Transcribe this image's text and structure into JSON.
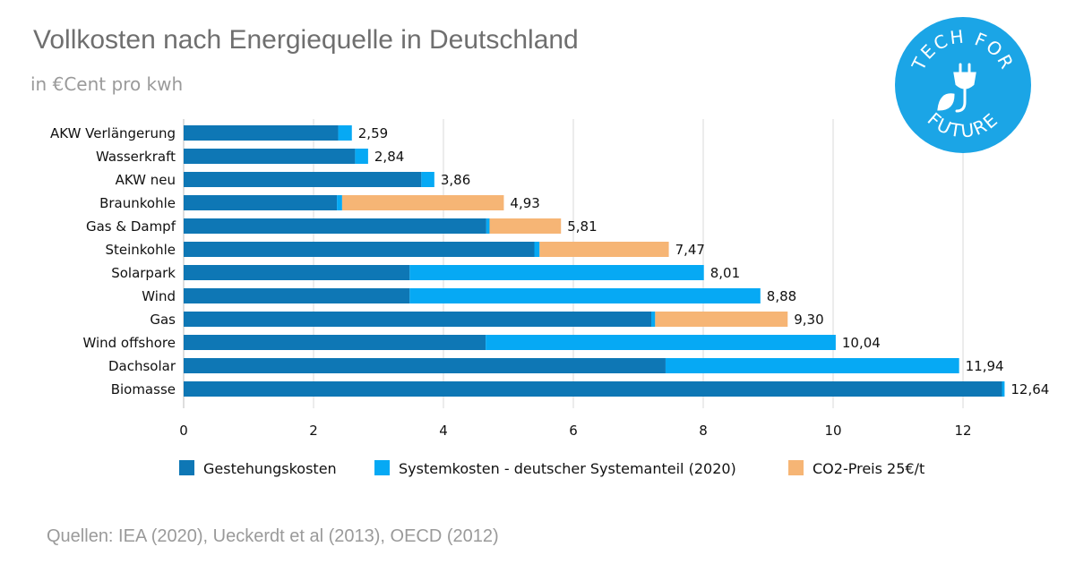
{
  "title": "Vollkosten nach Energiequelle in Deutschland",
  "subtitle": "in €Cent pro kwh",
  "source": "Quellen: IEA (2020), Ueckerdt et al (2013), OECD (2012)",
  "logo": {
    "top": "TECH FOR",
    "bottom": "FUTURE",
    "icon": "plug-leaf-icon",
    "color": "#1ba5e6"
  },
  "colors": {
    "gestehung": "#0e77b5",
    "system": "#06a9f4",
    "co2": "#f6b575",
    "grid": "#d9d9d9"
  },
  "chart_data": {
    "type": "bar",
    "orientation": "horizontal",
    "stacked": true,
    "categories": [
      "AKW Verlängerung",
      "Wasserkraft",
      "AKW neu",
      "Braunkohle",
      "Gas & Dampf",
      "Steinkohle",
      "Solarpark",
      "Wind",
      "Gas",
      "Wind offshore",
      "Dachsolar",
      "Biomasse"
    ],
    "series": [
      {
        "name": "Gestehungskosten",
        "values": [
          2.38,
          2.64,
          3.66,
          2.36,
          4.66,
          5.4,
          3.48,
          3.48,
          7.2,
          4.65,
          7.42,
          12.6
        ]
      },
      {
        "name": "Systemkosten - deutscher Systemanteil (2020)",
        "values": [
          0.21,
          0.2,
          0.2,
          0.08,
          0.05,
          0.08,
          4.53,
          5.4,
          0.06,
          5.39,
          4.52,
          0.04
        ]
      },
      {
        "name": "CO2-Preis 25€/t",
        "values": [
          0,
          0,
          0,
          2.49,
          1.1,
          1.99,
          0,
          0,
          2.04,
          0,
          0,
          0
        ]
      }
    ],
    "totals": [
      "2,59",
      "2,84",
      "3,86",
      "4,93",
      "5,81",
      "7,47",
      "8,01",
      "8,88",
      "9,30",
      "10,04",
      "11,94",
      "12,64"
    ],
    "xlim": [
      0,
      13
    ],
    "xticks": [
      0,
      2,
      4,
      6,
      8,
      10,
      12
    ],
    "grid": true,
    "legend_position": "bottom"
  }
}
